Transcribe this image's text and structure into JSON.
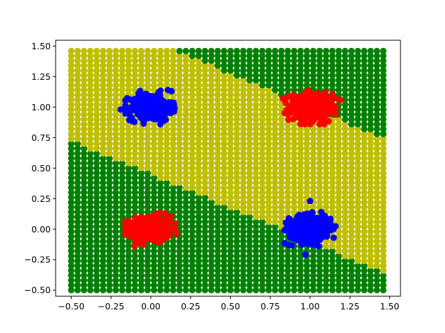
{
  "chart_data": {
    "type": "scatter",
    "title": "",
    "xlabel": "",
    "ylabel": "",
    "xlim": [
      -0.598,
      1.568
    ],
    "ylim": [
      -0.55,
      1.548
    ],
    "x_ticks": [
      -0.5,
      -0.25,
      0.0,
      0.25,
      0.5,
      0.75,
      1.0,
      1.25,
      1.5
    ],
    "x_tick_labels": [
      "−0.50",
      "−0.25",
      "0.00",
      "0.25",
      "0.50",
      "0.75",
      "1.00",
      "1.25",
      "1.50"
    ],
    "y_ticks": [
      -0.5,
      -0.25,
      0.0,
      0.25,
      0.5,
      0.75,
      1.0,
      1.25,
      1.5
    ],
    "y_tick_labels": [
      "−0.50",
      "−0.25",
      "0.00",
      "0.25",
      "0.50",
      "0.75",
      "1.00",
      "1.25",
      "1.50"
    ],
    "grid": false,
    "legend": "none",
    "background_grid": {
      "x_start": -0.5,
      "x_end": 1.46,
      "x_step": 0.04,
      "y_start": -0.5,
      "y_end": 1.46,
      "y_step": 0.04,
      "class_colors": {
        "inside_band": "#bfbf00",
        "outside_band": "#008000"
      },
      "band": {
        "line_a": {
          "intercept": 0.45,
          "slope": -0.55
        },
        "line_b": {
          "intercept": 1.55,
          "slope": -0.55
        }
      }
    },
    "series": [
      {
        "color": "#ff0000",
        "center": [
          0.0,
          0.0
        ],
        "spread": [
          0.065,
          0.055
        ],
        "count": 350
      },
      {
        "color": "#ff0000",
        "center": [
          1.0,
          1.0
        ],
        "spread": [
          0.065,
          0.055
        ],
        "count": 350
      },
      {
        "color": "#0000ff",
        "center": [
          0.0,
          1.0
        ],
        "spread": [
          0.065,
          0.055
        ],
        "count": 350
      },
      {
        "color": "#0000ff",
        "center": [
          1.0,
          0.0
        ],
        "spread": [
          0.065,
          0.055
        ],
        "count": 350
      }
    ],
    "outliers": [
      {
        "color": "#0000ff",
        "x": 1.0,
        "y": 0.23
      },
      {
        "color": "#0000ff",
        "x": -0.19,
        "y": 0.98
      },
      {
        "color": "#0000ff",
        "x": 0.13,
        "y": 1.13
      },
      {
        "color": "#ff0000",
        "x": 1.19,
        "y": 1.06
      },
      {
        "color": "#ff0000",
        "x": 0.83,
        "y": 1.07
      },
      {
        "color": "#0000ff",
        "x": 0.97,
        "y": -0.21
      }
    ]
  }
}
